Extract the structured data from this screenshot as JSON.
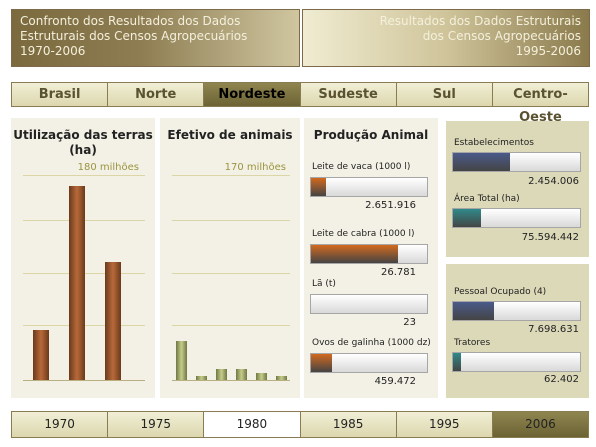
{
  "header_left": {
    "line1": "Confronto dos Resultados dos Dados",
    "line2": "Estruturais dos Censos Agropecuários",
    "line3": "1970-2006"
  },
  "header_right": {
    "line1": "Resultados dos Dados Estruturais",
    "line2": "dos Censos Agropecuários",
    "line3": "1995-2006"
  },
  "regions": [
    "Brasil",
    "Norte",
    "Nordeste",
    "Sudeste",
    "Sul",
    "Centro-Oeste"
  ],
  "active_region": "Nordeste",
  "land_use": {
    "title": "Utilização das terras (ha)",
    "scale": "180 milhões",
    "chart_data": {
      "type": "bar",
      "title": "Utilização das terras (ha)",
      "values": [
        44,
        170,
        104
      ],
      "ylim": [
        0,
        180
      ]
    }
  },
  "animals": {
    "title": "Efetivo de animais",
    "scale": "170 milhões",
    "chart_data": {
      "type": "bar",
      "title": "Efetivo de animais",
      "values": [
        32,
        3,
        9,
        9,
        6,
        3
      ],
      "ylim": [
        0,
        170
      ]
    }
  },
  "animal_production": {
    "title": "Produção Animal",
    "items": [
      {
        "label": "Leite de vaca (1000 l)",
        "value": "2.651.916",
        "fill": 0.13,
        "color": "#d2691e"
      },
      {
        "label": "Leite de cabra (1000 l)",
        "value": "26.781",
        "fill": 0.75,
        "color": "#d2691e"
      },
      {
        "label": "Lã (t)",
        "value": "23",
        "fill": 0.0,
        "color": "#d2691e"
      },
      {
        "label": "Ovos de galinha (1000 dz)",
        "value": "459.472",
        "fill": 0.18,
        "color": "#d2691e"
      }
    ]
  },
  "establishments": {
    "items": [
      {
        "label": "Estabelecimentos",
        "value": "2.454.006",
        "fill": 0.45,
        "color": "#4a5a8a"
      },
      {
        "label": "Área Total (ha)",
        "value": "75.594.442",
        "fill": 0.22,
        "color": "#2f8a8a"
      }
    ]
  },
  "labor": {
    "items": [
      {
        "label": "Pessoal Ocupado (4)",
        "value": "7.698.631",
        "fill": 0.32,
        "color": "#4a5a8a"
      },
      {
        "label": "Tratores",
        "value": "62.402",
        "fill": 0.06,
        "color": "#2f8a8a"
      }
    ]
  },
  "years": [
    "1970",
    "1975",
    "1980",
    "1985",
    "1995",
    "2006"
  ],
  "active_year": "1980",
  "selected_year": "2006"
}
